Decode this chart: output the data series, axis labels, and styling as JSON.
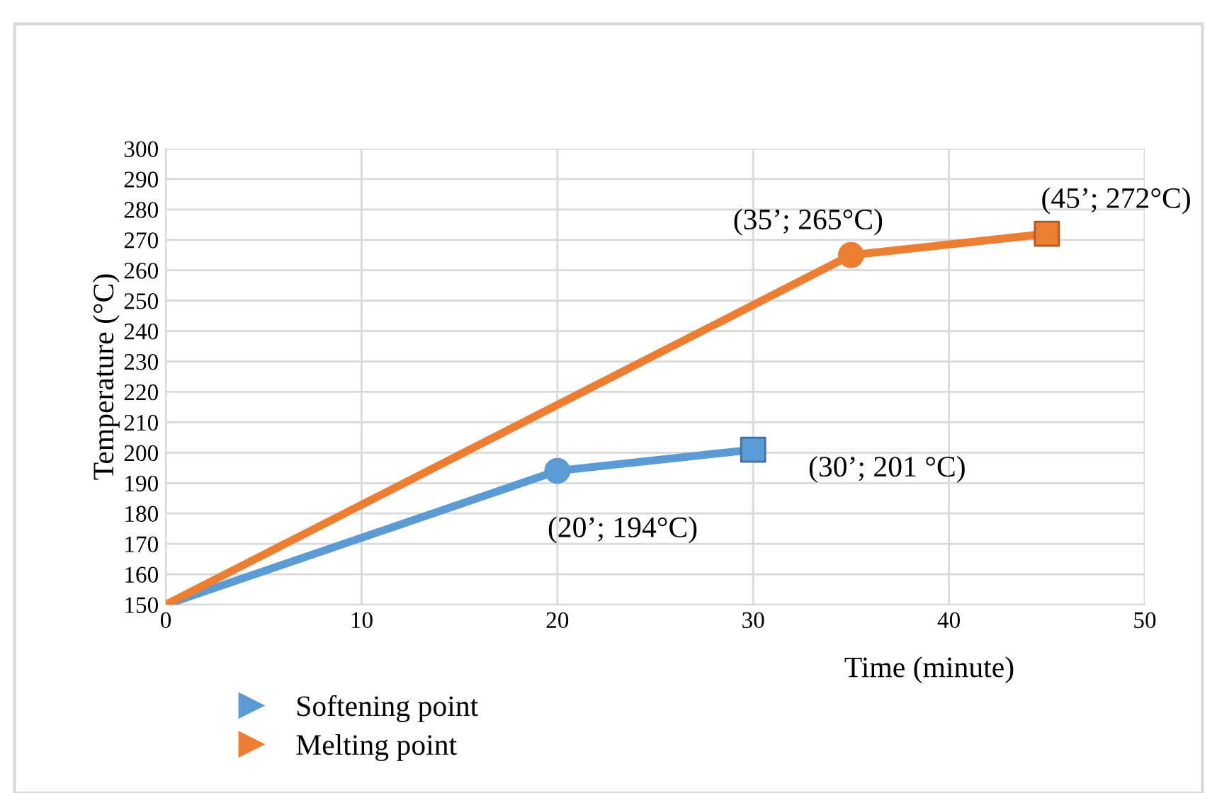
{
  "chart_data": {
    "type": "line",
    "xlabel": "Time (minute)",
    "ylabel": "Temperature (°C)",
    "xlim": [
      0,
      50
    ],
    "xticks": [
      0,
      10,
      20,
      30,
      40,
      50
    ],
    "ylim": [
      150,
      300
    ],
    "yticks": [
      150,
      160,
      170,
      180,
      190,
      200,
      210,
      220,
      230,
      240,
      250,
      260,
      270,
      280,
      290,
      300
    ],
    "grid": true,
    "legend": "bottom left",
    "marker": "none",
    "series": [
      {
        "name": "Softening point",
        "color": "#5b9bd5",
        "x": [
          0,
          20,
          30
        ],
        "values": [
          150,
          194,
          201
        ]
      },
      {
        "name": "Melting point",
        "color": "#ed7d31",
        "x": [
          0,
          35,
          45
        ],
        "values": [
          150,
          265,
          272
        ]
      },
      {
        "type": "scatter",
        "marker": "circle",
        "color": "#5b9bd5",
        "x": [
          20
        ],
        "values": [
          194
        ]
      },
      {
        "type": "scatter",
        "marker": "square",
        "color": "#5b9bd5",
        "x": [
          30
        ],
        "values": [
          201
        ]
      },
      {
        "type": "scatter",
        "marker": "circle",
        "color": "#ed7d31",
        "x": [
          35
        ],
        "values": [
          265
        ]
      },
      {
        "type": "scatter",
        "marker": "square",
        "color": "#ed7d31",
        "x": [
          45
        ],
        "values": [
          272
        ]
      }
    ],
    "annotations": [
      {
        "text": "(20’; 194°C)",
        "x": 20,
        "y": 194
      },
      {
        "text": "(30’; 201 °C)",
        "x": 30,
        "y": 201
      },
      {
        "text": "(35’; 265°C)",
        "x": 35,
        "y": 265
      },
      {
        "text": "(45’; 272°C)",
        "x": 45,
        "y": 272
      }
    ]
  }
}
